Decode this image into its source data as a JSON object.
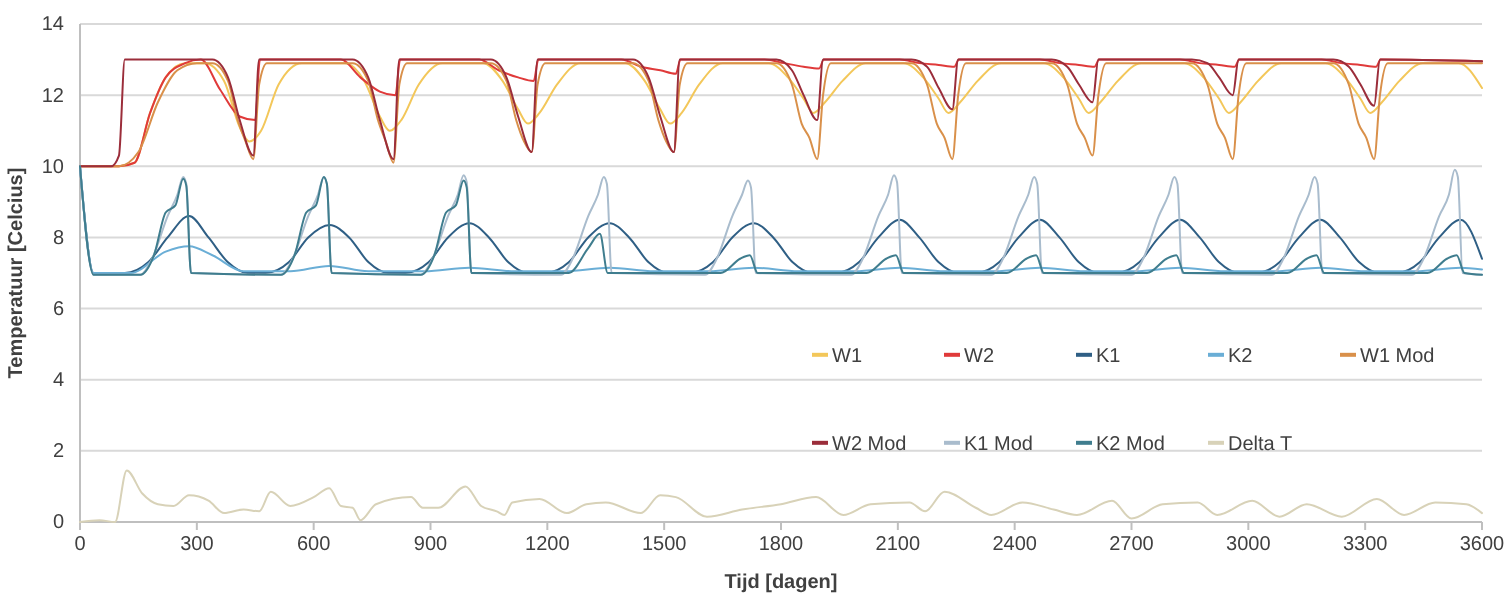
{
  "chart_data": {
    "type": "line",
    "xlabel": "Tijd [dagen]",
    "ylabel": "Temperatuur [Celcius]",
    "xlim": [
      0,
      3600
    ],
    "xticks": [
      0,
      300,
      600,
      900,
      1200,
      1500,
      1800,
      2100,
      2400,
      2700,
      3000,
      3300,
      3600
    ],
    "ylim": [
      0,
      14
    ],
    "yticks": [
      0,
      2,
      4,
      6,
      8,
      10,
      12,
      14
    ],
    "grid": "y",
    "legend": "right",
    "series": [
      {
        "name": "W1",
        "color": "#f3c75a",
        "x": [
          0,
          100,
          140,
          180,
          220,
          270,
          320,
          370,
          410,
          435,
          465,
          510,
          570,
          680,
          730,
          770,
          795,
          825,
          870,
          930,
          1035,
          1085,
          1125,
          1150,
          1180,
          1225,
          1285,
          1400,
          1450,
          1490,
          1515,
          1545,
          1590,
          1650,
          1768,
          1818,
          1858,
          1883,
          1913,
          1958,
          2018,
          2115,
          2165,
          2205,
          2230,
          2260,
          2305,
          2365,
          2475,
          2525,
          2565,
          2590,
          2620,
          2665,
          2725,
          2835,
          2885,
          2925,
          2950,
          2980,
          3025,
          3085,
          3198,
          3248,
          3288,
          3313,
          3343,
          3388,
          3448,
          3540,
          3600
        ],
        "values": [
          10,
          10,
          10.1,
          11.5,
          12.5,
          12.9,
          12.9,
          12.4,
          11.1,
          10.7,
          11.0,
          12.3,
          12.9,
          12.9,
          12.4,
          11.4,
          11.0,
          11.3,
          12.3,
          12.9,
          12.9,
          12.4,
          11.6,
          11.2,
          11.5,
          12.3,
          12.9,
          12.9,
          12.4,
          11.6,
          11.2,
          11.5,
          12.3,
          12.9,
          12.9,
          12.5,
          11.9,
          11.5,
          11.8,
          12.4,
          12.9,
          12.9,
          12.5,
          11.9,
          11.5,
          11.8,
          12.4,
          12.9,
          12.9,
          12.5,
          11.9,
          11.5,
          11.8,
          12.4,
          12.9,
          12.9,
          12.5,
          11.9,
          11.5,
          11.8,
          12.4,
          12.9,
          12.9,
          12.5,
          11.9,
          11.5,
          11.8,
          12.4,
          12.9,
          12.9,
          12.2
        ]
      },
      {
        "name": "W2",
        "color": "#e03a3a",
        "x": [
          0,
          100,
          140,
          180,
          220,
          270,
          310,
          360,
          410,
          450,
          462,
          670,
          720,
          770,
          810,
          822,
          1025,
          1075,
          1125,
          1165,
          1177,
          1390,
          1440,
          1490,
          1530,
          1542,
          1758,
          1808,
          1858,
          1898,
          1910,
          2105,
          2155,
          2205,
          2245,
          2257,
          2465,
          2515,
          2565,
          2605,
          2617,
          2825,
          2875,
          2925,
          2965,
          2977,
          3188,
          3238,
          3288,
          3328,
          3340,
          3600
        ],
        "values": [
          10,
          10,
          10.1,
          11.5,
          12.5,
          12.9,
          13,
          12.15,
          11.4,
          11.3,
          13,
          13,
          12.5,
          12.1,
          12.0,
          13,
          13,
          12.7,
          12.5,
          12.4,
          13,
          13,
          12.8,
          12.7,
          12.6,
          13,
          13,
          12.9,
          12.8,
          12.75,
          13,
          13,
          12.9,
          12.85,
          12.8,
          13,
          13,
          12.9,
          12.85,
          12.8,
          13,
          13,
          12.9,
          12.85,
          12.8,
          13,
          13,
          12.9,
          12.85,
          12.8,
          13,
          12.95
        ]
      },
      {
        "name": "K1",
        "color": "#2f5f85",
        "x": [
          0,
          35,
          115,
          175,
          225,
          280,
          330,
          380,
          430,
          476,
          536,
          586,
          641,
          691,
          741,
          791,
          835,
          895,
          945,
          1000,
          1050,
          1100,
          1150,
          1195,
          1255,
          1305,
          1360,
          1410,
          1460,
          1510,
          1565,
          1625,
          1675,
          1730,
          1780,
          1830,
          1880,
          1940,
          2000,
          2050,
          2105,
          2155,
          2205,
          2255,
          2300,
          2360,
          2410,
          2465,
          2515,
          2565,
          2615,
          2660,
          2720,
          2770,
          2825,
          2875,
          2925,
          2975,
          3020,
          3080,
          3130,
          3185,
          3235,
          3285,
          3335,
          3380,
          3440,
          3490,
          3545,
          3600
        ],
        "values": [
          10,
          7.0,
          7.0,
          7.3,
          8.0,
          8.6,
          8.0,
          7.3,
          7.0,
          7.0,
          7.3,
          8.0,
          8.35,
          8.0,
          7.3,
          7.0,
          7.0,
          7.3,
          8.0,
          8.4,
          8.0,
          7.3,
          7.0,
          7.0,
          7.3,
          8.0,
          8.4,
          8.0,
          7.3,
          7.0,
          7.0,
          7.3,
          8.0,
          8.4,
          8.0,
          7.3,
          7.0,
          7.0,
          7.3,
          8.0,
          8.5,
          8.0,
          7.3,
          7.0,
          7.0,
          7.3,
          8.0,
          8.5,
          8.0,
          7.3,
          7.0,
          7.0,
          7.3,
          8.0,
          8.5,
          8.0,
          7.3,
          7.0,
          7.0,
          7.3,
          8.0,
          8.5,
          8.0,
          7.3,
          7.0,
          7.0,
          7.3,
          8.0,
          8.5,
          7.4
        ]
      },
      {
        "name": "K2",
        "color": "#6aaed6",
        "x": [
          0,
          35,
          130,
          220,
          280,
          340,
          420,
          540,
          640,
          740,
          885,
          1000,
          1115,
          1245,
          1360,
          1475,
          1615,
          1730,
          1845,
          1990,
          2105,
          2220,
          2350,
          2465,
          2580,
          2710,
          2825,
          2940,
          3070,
          3185,
          3300,
          3430,
          3545,
          3600
        ],
        "values": [
          10,
          7.0,
          7.0,
          7.6,
          7.75,
          7.5,
          7.05,
          7.05,
          7.2,
          7.05,
          7.05,
          7.15,
          7.05,
          7.05,
          7.15,
          7.05,
          7.05,
          7.15,
          7.05,
          7.05,
          7.15,
          7.05,
          7.05,
          7.15,
          7.05,
          7.05,
          7.15,
          7.05,
          7.05,
          7.15,
          7.05,
          7.05,
          7.15,
          7.1
        ]
      },
      {
        "name": "W1 Mod",
        "color": "#d9904a",
        "x": [
          0,
          100,
          150,
          200,
          250,
          300,
          340,
          380,
          405,
          425,
          445,
          460,
          480,
          700,
          740,
          765,
          785,
          805,
          820,
          840,
          1055,
          1095,
          1120,
          1140,
          1160,
          1175,
          1195,
          1420,
          1460,
          1485,
          1505,
          1525,
          1540,
          1560,
          1788,
          1828,
          1853,
          1873,
          1893,
          1908,
          1928,
          2135,
          2175,
          2200,
          2220,
          2240,
          2255,
          2275,
          2495,
          2535,
          2560,
          2580,
          2600,
          2615,
          2635,
          2855,
          2895,
          2920,
          2940,
          2960,
          2975,
          2995,
          3218,
          3258,
          3283,
          3303,
          3323,
          3338,
          3358,
          3600
        ],
        "values": [
          10,
          10,
          10.4,
          11.8,
          12.7,
          12.9,
          12.9,
          12.4,
          11.3,
          10.7,
          10.2,
          12.3,
          12.9,
          12.9,
          12.4,
          11.3,
          10.7,
          10.1,
          12.3,
          12.9,
          12.9,
          12.4,
          11.3,
          10.7,
          10.4,
          12.3,
          12.9,
          12.9,
          12.4,
          11.3,
          10.7,
          10.4,
          12.3,
          12.9,
          12.9,
          12.3,
          11.2,
          10.8,
          10.2,
          12.0,
          12.9,
          12.9,
          12.3,
          11.2,
          10.8,
          10.2,
          12.0,
          12.9,
          12.9,
          12.3,
          11.2,
          10.8,
          10.3,
          12.0,
          12.9,
          12.9,
          12.3,
          11.2,
          10.8,
          10.2,
          12.0,
          12.9,
          12.9,
          12.3,
          11.2,
          10.8,
          10.2,
          12.0,
          12.9,
          12.9
        ]
      },
      {
        "name": "W2 Mod",
        "color": "#9b2d3a",
        "x": [
          0,
          80,
          100,
          115,
          340,
          380,
          410,
          445,
          460,
          700,
          740,
          770,
          805,
          820,
          1055,
          1095,
          1125,
          1160,
          1175,
          1420,
          1460,
          1490,
          1525,
          1540,
          1788,
          1828,
          1858,
          1893,
          1908,
          2135,
          2175,
          2205,
          2240,
          2255,
          2495,
          2535,
          2565,
          2600,
          2615,
          2855,
          2895,
          2925,
          2960,
          2975,
          3218,
          3258,
          3288,
          3323,
          3338,
          3600
        ],
        "values": [
          10,
          10,
          10.3,
          13,
          13,
          12.5,
          11.3,
          10.3,
          13,
          13,
          12.5,
          11.3,
          10.2,
          13,
          13,
          12.5,
          11.4,
          10.4,
          13,
          13,
          12.5,
          11.4,
          10.4,
          13,
          13,
          12.7,
          12.0,
          11.3,
          13,
          13,
          12.8,
          12.2,
          11.6,
          13,
          13,
          12.8,
          12.3,
          11.8,
          13,
          13,
          12.9,
          12.5,
          12.0,
          13,
          13,
          12.8,
          12.3,
          11.7,
          13,
          12.95
        ]
      },
      {
        "name": "K1 Mod",
        "color": "#a9bccd",
        "x": [
          0,
          35,
          155,
          185,
          225,
          250,
          265,
          273,
          285,
          516,
          546,
          586,
          611,
          626,
          634,
          646,
          875,
          905,
          945,
          970,
          985,
          993,
          1005,
          1235,
          1265,
          1305,
          1330,
          1345,
          1353,
          1365,
          1605,
          1635,
          1675,
          1700,
          1715,
          1723,
          1735,
          1980,
          2010,
          2050,
          2075,
          2090,
          2098,
          2110,
          2340,
          2370,
          2410,
          2435,
          2450,
          2458,
          2470,
          2700,
          2730,
          2770,
          2795,
          2810,
          2818,
          2830,
          3060,
          3090,
          3130,
          3155,
          3170,
          3178,
          3190,
          3420,
          3450,
          3490,
          3515,
          3530,
          3538,
          3550,
          3600
        ],
        "values": [
          10,
          6.95,
          6.95,
          7.4,
          8.6,
          9.2,
          9.7,
          9.5,
          7.0,
          6.95,
          7.4,
          8.6,
          9.2,
          9.7,
          9.5,
          7.0,
          6.95,
          7.4,
          8.6,
          9.2,
          9.75,
          9.55,
          7.0,
          6.95,
          7.4,
          8.6,
          9.2,
          9.7,
          9.5,
          7.0,
          6.95,
          7.4,
          8.6,
          9.2,
          9.6,
          9.4,
          7.0,
          6.95,
          7.4,
          8.6,
          9.2,
          9.75,
          9.55,
          7.0,
          6.95,
          7.4,
          8.6,
          9.2,
          9.7,
          9.5,
          7.0,
          6.95,
          7.4,
          8.6,
          9.2,
          9.7,
          9.5,
          7.0,
          6.95,
          7.4,
          8.6,
          9.2,
          9.7,
          9.5,
          7.0,
          6.95,
          7.4,
          8.6,
          9.2,
          9.9,
          9.7,
          7.0,
          6.95
        ]
      },
      {
        "name": "K2 Mod",
        "color": "#3f7d8e",
        "x": [
          0,
          35,
          155,
          190,
          220,
          245,
          265,
          273,
          285,
          516,
          551,
          581,
          606,
          626,
          634,
          646,
          875,
          910,
          940,
          965,
          985,
          993,
          1005,
          1255,
          1305,
          1335,
          1355,
          1645,
          1695,
          1720,
          1740,
          2020,
          2070,
          2095,
          2115,
          2380,
          2430,
          2455,
          2475,
          2740,
          2790,
          2815,
          2835,
          3100,
          3150,
          3175,
          3195,
          3460,
          3510,
          3535,
          3555,
          3600
        ],
        "values": [
          10,
          6.95,
          6.95,
          7.5,
          8.7,
          8.9,
          9.65,
          9.45,
          7.0,
          6.95,
          7.5,
          8.7,
          8.9,
          9.7,
          9.5,
          7.0,
          6.95,
          7.5,
          8.7,
          8.9,
          9.6,
          9.4,
          7.0,
          7.0,
          7.7,
          8.1,
          7.0,
          7.0,
          7.4,
          7.5,
          7.0,
          7.0,
          7.4,
          7.5,
          7.0,
          7.0,
          7.4,
          7.5,
          7.0,
          7.0,
          7.4,
          7.5,
          7.0,
          7.0,
          7.4,
          7.5,
          7.0,
          7.0,
          7.4,
          7.5,
          7.0,
          6.95
        ]
      },
      {
        "name": "Delta T",
        "color": "#d8d2b8",
        "x": [
          0,
          50,
          90,
          120,
          160,
          200,
          240,
          280,
          330,
          370,
          420,
          460,
          490,
          540,
          600,
          640,
          670,
          700,
          720,
          760,
          850,
          880,
          920,
          990,
          1030,
          1070,
          1090,
          1110,
          1180,
          1250,
          1300,
          1350,
          1440,
          1490,
          1530,
          1610,
          1700,
          1800,
          1890,
          1960,
          2030,
          2130,
          2170,
          2220,
          2300,
          2340,
          2420,
          2500,
          2560,
          2650,
          2700,
          2780,
          2870,
          2920,
          3010,
          3080,
          3150,
          3240,
          3330,
          3400,
          3480,
          3560,
          3600
        ],
        "values": [
          0,
          0.05,
          0,
          1.45,
          0.8,
          0.5,
          0.45,
          0.75,
          0.6,
          0.25,
          0.35,
          0.3,
          0.85,
          0.45,
          0.7,
          0.95,
          0.45,
          0.4,
          0.05,
          0.5,
          0.7,
          0.4,
          0.4,
          1.0,
          0.45,
          0.3,
          0.2,
          0.55,
          0.65,
          0.25,
          0.5,
          0.55,
          0.25,
          0.75,
          0.7,
          0.15,
          0.35,
          0.5,
          0.7,
          0.2,
          0.5,
          0.55,
          0.3,
          0.85,
          0.4,
          0.2,
          0.55,
          0.35,
          0.2,
          0.6,
          0.1,
          0.5,
          0.55,
          0.2,
          0.6,
          0.15,
          0.5,
          0.15,
          0.65,
          0.2,
          0.55,
          0.5,
          0.25
        ]
      }
    ]
  }
}
